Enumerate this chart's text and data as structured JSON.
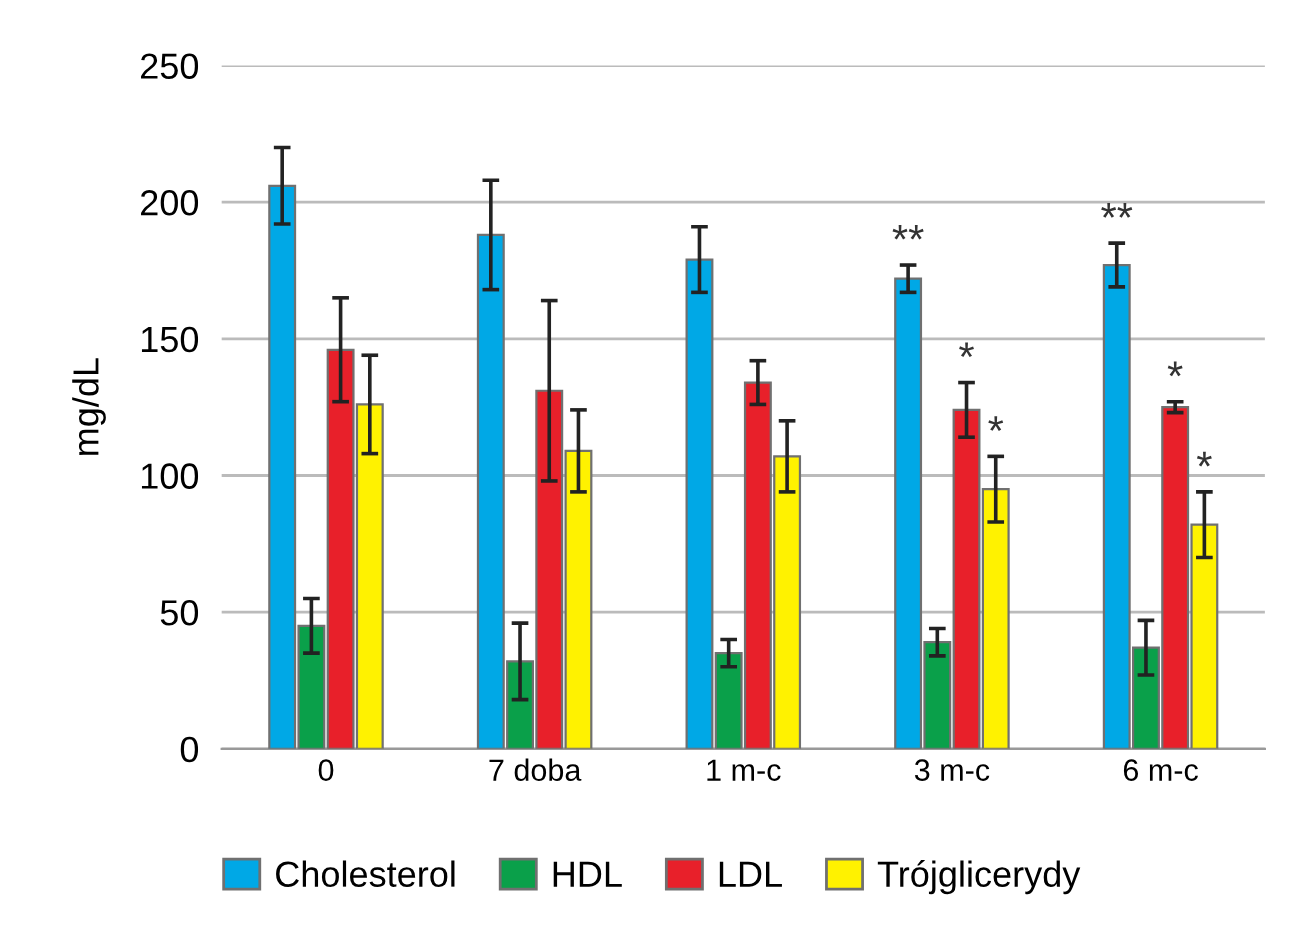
{
  "chart_data": {
    "type": "bar",
    "ylabel": "mg/dL",
    "categories": [
      "0",
      "7 doba",
      "1 m-c",
      "3 m-c",
      "6 m-c"
    ],
    "series": [
      {
        "name": "Cholesterol",
        "color": "#00a8e6",
        "values": [
          206,
          188,
          179,
          172,
          177
        ],
        "errors": [
          14,
          20,
          12,
          5,
          8
        ],
        "value_labels": [
          null,
          null,
          null,
          "**",
          "**"
        ]
      },
      {
        "name": "HDL",
        "color": "#0aa04a",
        "values": [
          45,
          32,
          35,
          39,
          37
        ],
        "errors": [
          10,
          14,
          5,
          5,
          10
        ]
      },
      {
        "name": "LDL",
        "color": "#e8202a",
        "values": [
          146,
          131,
          134,
          124,
          125
        ],
        "errors": [
          19,
          33,
          8,
          10,
          2
        ],
        "value_labels": [
          null,
          null,
          null,
          "*",
          "*"
        ]
      },
      {
        "name": "Trójglicerydy",
        "color": "#fff200",
        "values": [
          126,
          109,
          107,
          95,
          82
        ],
        "errors": [
          18,
          15,
          13,
          12,
          12
        ],
        "value_labels": [
          null,
          null,
          null,
          "*",
          "*"
        ]
      }
    ],
    "ylim": [
      0,
      250
    ],
    "yticks": [
      0,
      50,
      100,
      150,
      200,
      250
    ],
    "grid": "y",
    "legend": "bottom"
  }
}
